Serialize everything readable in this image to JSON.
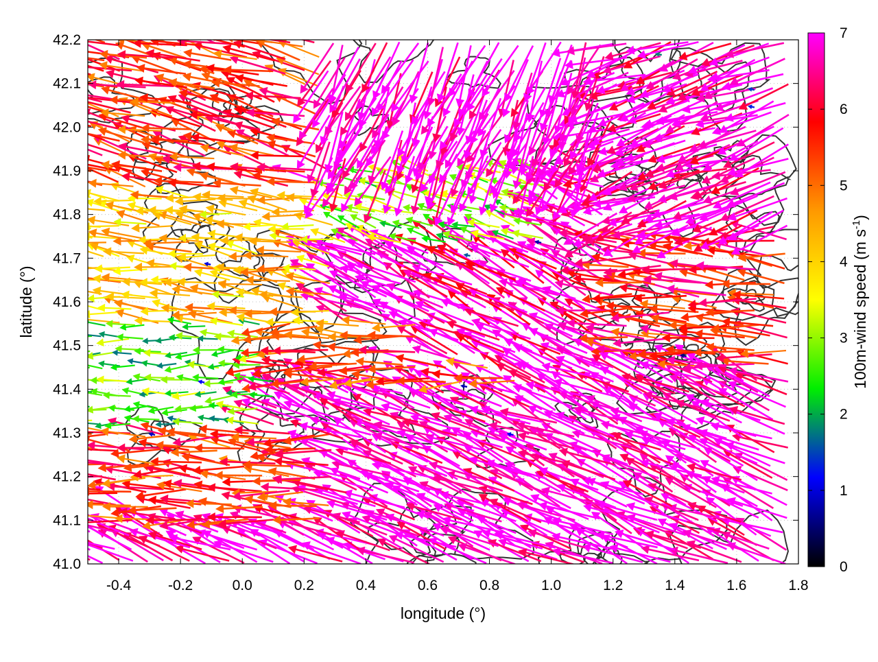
{
  "chart_data": {
    "type": "quiver",
    "xlabel": "longitude (°)",
    "ylabel": "latitude (°)",
    "colorbar_label": "100m-wind speed (m s",
    "colorbar_label_sup": "-1",
    "colorbar_label_end": ")",
    "xlim": [
      -0.5,
      1.8
    ],
    "ylim": [
      41.0,
      42.2
    ],
    "x_ticks": [
      -0.4,
      -0.2,
      0.0,
      0.2,
      0.4,
      0.6,
      0.8,
      1.0,
      1.2,
      1.4,
      1.6,
      1.8
    ],
    "x_tick_labels": [
      "-0.4",
      "-0.2",
      "0.0",
      "0.2",
      "0.4",
      "0.6",
      "0.8",
      "1.0",
      "1.2",
      "1.4",
      "1.6",
      "1.8"
    ],
    "y_ticks": [
      41.0,
      41.1,
      41.2,
      41.3,
      41.4,
      41.5,
      41.6,
      41.7,
      41.8,
      41.9,
      42.0,
      42.1,
      42.2
    ],
    "y_tick_labels": [
      "41.0",
      "41.1",
      "41.2",
      "41.3",
      "41.4",
      "41.5",
      "41.6",
      "41.7",
      "41.8",
      "41.9",
      "42.0",
      "42.1",
      "42.2"
    ],
    "colorbar_range": [
      0,
      7
    ],
    "colorbar_ticks": [
      0,
      1,
      2,
      3,
      4,
      5,
      6,
      7
    ],
    "colorbar_tick_labels": [
      "0",
      "1",
      "2",
      "3",
      "4",
      "5",
      "6",
      "7"
    ],
    "colorbar_colors": [
      "#000000",
      "#0000ff",
      "#00ee00",
      "#ffff00",
      "#ff9900",
      "#ff0000",
      "#ff00ff"
    ],
    "grid": true,
    "contour_color": "#333333",
    "wind_regions": [
      {
        "x": [
          -0.5,
          0.25
        ],
        "y": [
          41.85,
          42.2
        ],
        "u": -1.0,
        "v": 0.25,
        "speed": 5.6
      },
      {
        "x": [
          0.25,
          1.2
        ],
        "y": [
          41.9,
          42.2
        ],
        "u": -0.35,
        "v": -0.8,
        "speed": 7.0
      },
      {
        "x": [
          1.2,
          1.8
        ],
        "y": [
          41.75,
          42.2
        ],
        "u": -1.0,
        "v": -0.35,
        "speed": 6.8
      },
      {
        "x": [
          -0.5,
          0.3
        ],
        "y": [
          41.55,
          41.85
        ],
        "u": -1.0,
        "v": 0.15,
        "speed": 4.2
      },
      {
        "x": [
          0.3,
          1.0
        ],
        "y": [
          41.72,
          41.9
        ],
        "u": -0.9,
        "v": 0.3,
        "speed": 3.0
      },
      {
        "x": [
          0.6,
          1.2
        ],
        "y": [
          41.45,
          41.72
        ],
        "u": -1.0,
        "v": 0.5,
        "speed": 6.6
      },
      {
        "x": [
          1.2,
          1.8
        ],
        "y": [
          41.45,
          41.75
        ],
        "u": -1.0,
        "v": 0.1,
        "speed": 5.8
      },
      {
        "x": [
          -0.5,
          0.1
        ],
        "y": [
          41.3,
          41.55
        ],
        "u": -1.0,
        "v": 0.0,
        "speed": 2.6
      },
      {
        "x": [
          0.1,
          0.9
        ],
        "y": [
          41.4,
          41.55
        ],
        "u": -1.0,
        "v": 0.0,
        "speed": 5.4
      },
      {
        "x": [
          -0.5,
          0.3
        ],
        "y": [
          41.1,
          41.3
        ],
        "u": -1.0,
        "v": 0.05,
        "speed": 5.5
      },
      {
        "x": [
          -0.5,
          1.8
        ],
        "y": [
          41.0,
          41.4
        ],
        "u": -1.0,
        "v": 0.45,
        "speed": 7.0
      }
    ],
    "calm_points": [
      {
        "lon": -0.12,
        "lat": 41.69,
        "speed": 1.0
      },
      {
        "lon": 0.72,
        "lat": 41.71,
        "speed": 1.6
      },
      {
        "lon": 0.95,
        "lat": 41.74,
        "speed": 0.8
      },
      {
        "lon": -0.14,
        "lat": 41.42,
        "speed": 1.2
      },
      {
        "lon": -0.3,
        "lat": 41.3,
        "speed": 0.9
      },
      {
        "lon": 0.71,
        "lat": 41.41,
        "speed": 0.8
      },
      {
        "lon": 0.86,
        "lat": 41.3,
        "speed": 1.1
      },
      {
        "lon": 1.42,
        "lat": 41.48,
        "speed": 0.6
      },
      {
        "lon": 1.64,
        "lat": 42.09,
        "speed": 1.4
      },
      {
        "lon": 1.64,
        "lat": 42.05,
        "speed": 1.3
      },
      {
        "lon": 1.34,
        "lat": 42.17,
        "speed": 1.8
      }
    ]
  }
}
